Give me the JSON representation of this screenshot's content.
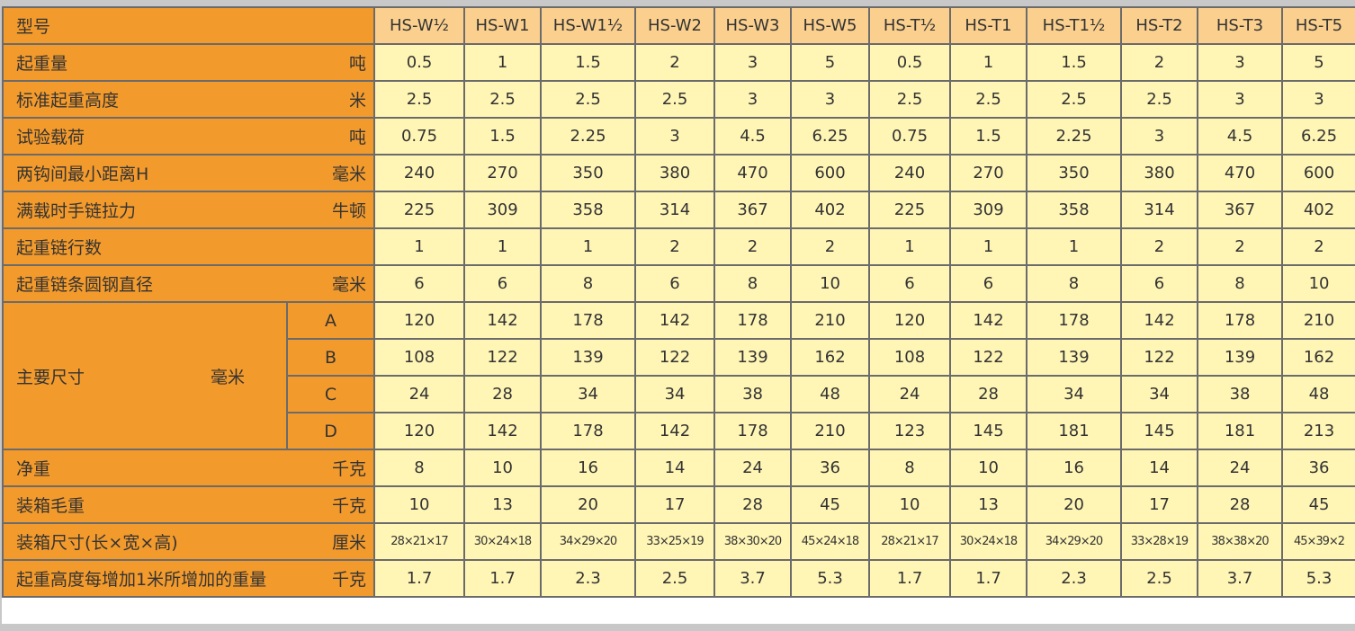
{
  "header": {
    "label": "型号",
    "models": [
      "HS-W½",
      "HS-W1",
      "HS-W1½",
      "HS-W2",
      "HS-W3",
      "HS-W5",
      "HS-T½",
      "HS-T1",
      "HS-T1½",
      "HS-T2",
      "HS-T3",
      "HS-T5"
    ]
  },
  "rows": [
    {
      "label": "起重量",
      "unit": "吨",
      "values": [
        "0.5",
        "1",
        "1.5",
        "2",
        "3",
        "5",
        "0.5",
        "1",
        "1.5",
        "2",
        "3",
        "5"
      ]
    },
    {
      "label": "标准起重高度",
      "unit": "米",
      "values": [
        "2.5",
        "2.5",
        "2.5",
        "2.5",
        "3",
        "3",
        "2.5",
        "2.5",
        "2.5",
        "2.5",
        "3",
        "3"
      ]
    },
    {
      "label": "试验载荷",
      "unit": "吨",
      "values": [
        "0.75",
        "1.5",
        "2.25",
        "3",
        "4.5",
        "6.25",
        "0.75",
        "1.5",
        "2.25",
        "3",
        "4.5",
        "6.25"
      ]
    },
    {
      "label": "两钩间最小距离H",
      "unit": "毫米",
      "values": [
        "240",
        "270",
        "350",
        "380",
        "470",
        "600",
        "240",
        "270",
        "350",
        "380",
        "470",
        "600"
      ]
    },
    {
      "label": "满载时手链拉力",
      "unit": "牛顿",
      "values": [
        "225",
        "309",
        "358",
        "314",
        "367",
        "402",
        "225",
        "309",
        "358",
        "314",
        "367",
        "402"
      ]
    },
    {
      "label": "起重链行数",
      "unit": "",
      "values": [
        "1",
        "1",
        "1",
        "2",
        "2",
        "2",
        "1",
        "1",
        "1",
        "2",
        "2",
        "2"
      ]
    },
    {
      "label": "起重链条圆钢直径",
      "unit": "毫米",
      "values": [
        "6",
        "6",
        "8",
        "6",
        "8",
        "10",
        "6",
        "6",
        "8",
        "6",
        "8",
        "10"
      ]
    }
  ],
  "dimensions": {
    "label": "主要尺寸",
    "unit": "毫米",
    "rows": [
      {
        "key": "A",
        "values": [
          "120",
          "142",
          "178",
          "142",
          "178",
          "210",
          "120",
          "142",
          "178",
          "142",
          "178",
          "210"
        ]
      },
      {
        "key": "B",
        "values": [
          "108",
          "122",
          "139",
          "122",
          "139",
          "162",
          "108",
          "122",
          "139",
          "122",
          "139",
          "162"
        ]
      },
      {
        "key": "C",
        "values": [
          "24",
          "28",
          "34",
          "34",
          "38",
          "48",
          "24",
          "28",
          "34",
          "34",
          "38",
          "48"
        ]
      },
      {
        "key": "D",
        "values": [
          "120",
          "142",
          "178",
          "142",
          "178",
          "210",
          "123",
          "145",
          "181",
          "145",
          "181",
          "213"
        ]
      }
    ]
  },
  "rows2": [
    {
      "label": "净重",
      "unit": "千克",
      "values": [
        "8",
        "10",
        "16",
        "14",
        "24",
        "36",
        "8",
        "10",
        "16",
        "14",
        "24",
        "36"
      ]
    },
    {
      "label": "装箱毛重",
      "unit": "千克",
      "values": [
        "10",
        "13",
        "20",
        "17",
        "28",
        "45",
        "10",
        "13",
        "20",
        "17",
        "28",
        "45"
      ]
    },
    {
      "label": "装箱尺寸(长×宽×高)",
      "unit": "厘米",
      "small": true,
      "values": [
        "28×21×17",
        "30×24×18",
        "34×29×20",
        "33×25×19",
        "38×30×20",
        "45×24×18",
        "28×21×17",
        "30×24×18",
        "34×29×20",
        "33×28×19",
        "38×38×20",
        "45×39×2"
      ]
    },
    {
      "label": "起重高度每增加1米所增加的重量",
      "unit": "千克",
      "values": [
        "1.7",
        "1.7",
        "2.3",
        "2.5",
        "3.7",
        "5.3",
        "1.7",
        "1.7",
        "2.3",
        "2.5",
        "3.7",
        "5.3"
      ]
    }
  ],
  "colors": {
    "label_bg": "#f39a2c",
    "header_bg": "#fbd08e",
    "value_bg": "#fff6b6"
  }
}
